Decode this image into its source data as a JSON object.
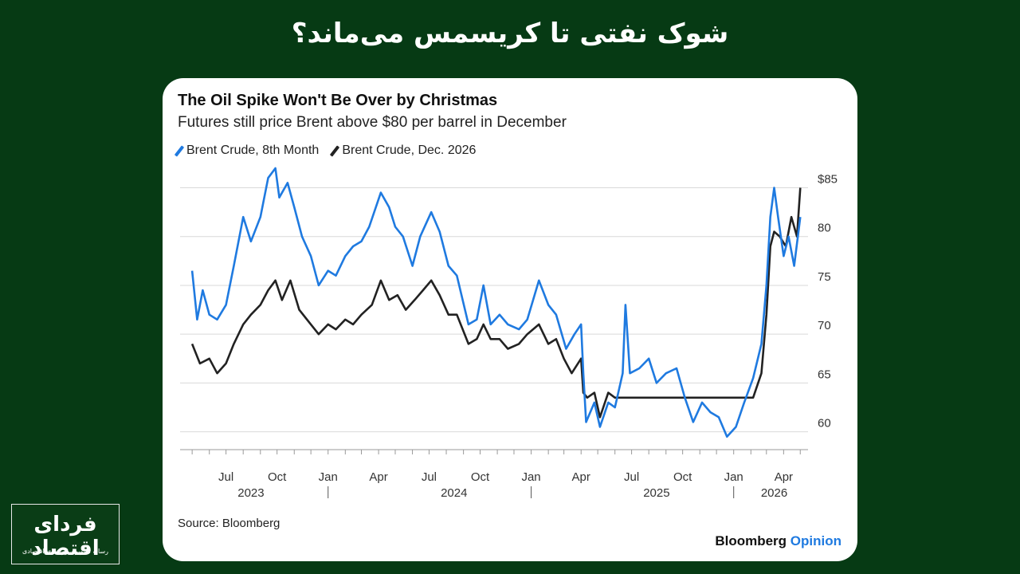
{
  "headline": "شوک نفتی تا کریسمس می‌ماند؟",
  "logo": {
    "main": "فردای اقتصاد",
    "sub": "رسانه تصویری روندهای اقتصادی"
  },
  "brand": {
    "name": "Bloomberg",
    "opinion": "Opinion"
  },
  "source": "Source: Bloomberg",
  "colors": {
    "background": "#063a14",
    "blue": "#1f7ae0",
    "black": "#222222",
    "grid": "#d9d9d9"
  },
  "chart_data": {
    "type": "line",
    "title": "The Oil Spike Won't Be Over by Christmas",
    "subtitle": "Futures still price Brent above $80 per barrel in December",
    "xlabel": "",
    "ylabel": "",
    "ylim": [
      58.5,
      87
    ],
    "grid": "horizontal",
    "legend_placement": "top-left",
    "y_ticks": [
      {
        "value": 85,
        "label": "$85"
      },
      {
        "value": 80,
        "label": "80"
      },
      {
        "value": 75,
        "label": "75"
      },
      {
        "value": 70,
        "label": "70"
      },
      {
        "value": 65,
        "label": "65"
      },
      {
        "value": 60,
        "label": "60"
      }
    ],
    "x_ticks": [
      "Jul",
      "Oct",
      "Jan",
      "Apr",
      "Jul",
      "Oct",
      "Jan",
      "Apr",
      "Jul",
      "Oct",
      "Jan",
      "Apr"
    ],
    "x_tick_months": [
      "2023-07",
      "2023-10",
      "2024-01",
      "2024-04",
      "2024-07",
      "2024-10",
      "2025-01",
      "2025-04",
      "2025-07",
      "2025-10",
      "2026-01",
      "2026-04"
    ],
    "year_labels": [
      {
        "year": "2023",
        "month": "2023-08"
      },
      {
        "year": "2024",
        "month": "2024-08"
      },
      {
        "year": "2025",
        "month": "2025-08"
      },
      {
        "year": "2026",
        "month": "2026-03"
      }
    ],
    "year_separators": [
      "2024-01",
      "2025-01",
      "2026-01"
    ],
    "series": [
      {
        "name": "Brent Crude, 8th Month",
        "color": "#1f7ae0",
        "points": [
          [
            "2023-05-01",
            76.5
          ],
          [
            "2023-05-10",
            71.5
          ],
          [
            "2023-05-20",
            74.5
          ],
          [
            "2023-06-01",
            72
          ],
          [
            "2023-06-15",
            71.5
          ],
          [
            "2023-07-01",
            73
          ],
          [
            "2023-07-15",
            77
          ],
          [
            "2023-08-01",
            82
          ],
          [
            "2023-08-15",
            79.5
          ],
          [
            "2023-09-01",
            82
          ],
          [
            "2023-09-15",
            86
          ],
          [
            "2023-09-28",
            87
          ],
          [
            "2023-10-05",
            84
          ],
          [
            "2023-10-20",
            85.5
          ],
          [
            "2023-11-01",
            83
          ],
          [
            "2023-11-15",
            80
          ],
          [
            "2023-12-01",
            78
          ],
          [
            "2023-12-15",
            75
          ],
          [
            "2024-01-01",
            76.5
          ],
          [
            "2024-01-15",
            76
          ],
          [
            "2024-02-01",
            78
          ],
          [
            "2024-02-15",
            79
          ],
          [
            "2024-03-01",
            79.5
          ],
          [
            "2024-03-15",
            81
          ],
          [
            "2024-04-05",
            84.5
          ],
          [
            "2024-04-20",
            83
          ],
          [
            "2024-05-01",
            81
          ],
          [
            "2024-05-15",
            80
          ],
          [
            "2024-06-01",
            77
          ],
          [
            "2024-06-15",
            80
          ],
          [
            "2024-07-05",
            82.5
          ],
          [
            "2024-07-20",
            80.5
          ],
          [
            "2024-08-05",
            77
          ],
          [
            "2024-08-20",
            76
          ],
          [
            "2024-09-10",
            71
          ],
          [
            "2024-09-25",
            71.5
          ],
          [
            "2024-10-07",
            75
          ],
          [
            "2024-10-20",
            71
          ],
          [
            "2024-11-05",
            72
          ],
          [
            "2024-11-20",
            71
          ],
          [
            "2024-12-10",
            70.5
          ],
          [
            "2024-12-25",
            71.5
          ],
          [
            "2025-01-15",
            75.5
          ],
          [
            "2025-02-01",
            73
          ],
          [
            "2025-02-15",
            72
          ],
          [
            "2025-03-05",
            68.5
          ],
          [
            "2025-03-20",
            70
          ],
          [
            "2025-04-01",
            71
          ],
          [
            "2025-04-05",
            66
          ],
          [
            "2025-04-10",
            61
          ],
          [
            "2025-04-25",
            63
          ],
          [
            "2025-05-05",
            60.5
          ],
          [
            "2025-05-20",
            63
          ],
          [
            "2025-06-01",
            62.5
          ],
          [
            "2025-06-15",
            66
          ],
          [
            "2025-06-20",
            73
          ],
          [
            "2025-06-28",
            66
          ],
          [
            "2025-07-15",
            66.5
          ],
          [
            "2025-08-01",
            67.5
          ],
          [
            "2025-08-15",
            65
          ],
          [
            "2025-09-01",
            66
          ],
          [
            "2025-09-20",
            66.5
          ],
          [
            "2025-10-05",
            63.5
          ],
          [
            "2025-10-20",
            61
          ],
          [
            "2025-11-05",
            63
          ],
          [
            "2025-11-20",
            62
          ],
          [
            "2025-12-05",
            61.5
          ],
          [
            "2025-12-20",
            59.5
          ],
          [
            "2026-01-05",
            60.5
          ],
          [
            "2026-01-20",
            63
          ],
          [
            "2026-02-05",
            65.5
          ],
          [
            "2026-02-20",
            69
          ],
          [
            "2026-03-01",
            75
          ],
          [
            "2026-03-08",
            82
          ],
          [
            "2026-03-15",
            85
          ],
          [
            "2026-03-22",
            82
          ],
          [
            "2026-04-01",
            78
          ],
          [
            "2026-04-10",
            80
          ],
          [
            "2026-04-20",
            77
          ],
          [
            "2026-05-01",
            82
          ]
        ]
      },
      {
        "name": "Brent Crude, Dec. 2026",
        "color": "#222222",
        "points": [
          [
            "2023-05-01",
            69
          ],
          [
            "2023-05-15",
            67
          ],
          [
            "2023-06-01",
            67.5
          ],
          [
            "2023-06-15",
            66
          ],
          [
            "2023-07-01",
            67
          ],
          [
            "2023-07-15",
            69
          ],
          [
            "2023-08-01",
            71
          ],
          [
            "2023-08-15",
            72
          ],
          [
            "2023-09-01",
            73
          ],
          [
            "2023-09-15",
            74.5
          ],
          [
            "2023-09-28",
            75.5
          ],
          [
            "2023-10-10",
            73.5
          ],
          [
            "2023-10-25",
            75.5
          ],
          [
            "2023-11-10",
            72.5
          ],
          [
            "2023-12-01",
            71
          ],
          [
            "2023-12-15",
            70
          ],
          [
            "2024-01-01",
            71
          ],
          [
            "2024-01-15",
            70.5
          ],
          [
            "2024-02-01",
            71.5
          ],
          [
            "2024-02-15",
            71
          ],
          [
            "2024-03-01",
            72
          ],
          [
            "2024-03-20",
            73
          ],
          [
            "2024-04-05",
            75.5
          ],
          [
            "2024-04-20",
            73.5
          ],
          [
            "2024-05-05",
            74
          ],
          [
            "2024-05-20",
            72.5
          ],
          [
            "2024-06-05",
            73.5
          ],
          [
            "2024-06-20",
            74.5
          ],
          [
            "2024-07-05",
            75.5
          ],
          [
            "2024-07-20",
            74
          ],
          [
            "2024-08-05",
            72
          ],
          [
            "2024-08-20",
            72
          ],
          [
            "2024-09-10",
            69
          ],
          [
            "2024-09-25",
            69.5
          ],
          [
            "2024-10-07",
            71
          ],
          [
            "2024-10-20",
            69.5
          ],
          [
            "2024-11-05",
            69.5
          ],
          [
            "2024-11-20",
            68.5
          ],
          [
            "2024-12-10",
            69
          ],
          [
            "2024-12-25",
            70
          ],
          [
            "2025-01-15",
            71
          ],
          [
            "2025-02-01",
            69
          ],
          [
            "2025-02-15",
            69.5
          ],
          [
            "2025-03-01",
            67.5
          ],
          [
            "2025-03-15",
            66
          ],
          [
            "2025-04-01",
            67.5
          ],
          [
            "2025-04-05",
            64
          ],
          [
            "2025-04-12",
            63.5
          ],
          [
            "2025-04-25",
            64
          ],
          [
            "2025-05-05",
            61.5
          ],
          [
            "2025-05-20",
            64
          ],
          [
            "2025-06-01",
            63.5
          ],
          [
            "2026-02-05",
            63.5
          ],
          [
            "2026-02-20",
            66
          ],
          [
            "2026-03-01",
            72
          ],
          [
            "2026-03-08",
            79
          ],
          [
            "2026-03-15",
            80.5
          ],
          [
            "2026-03-25",
            80
          ],
          [
            "2026-04-05",
            79
          ],
          [
            "2026-04-15",
            82
          ],
          [
            "2026-04-25",
            80
          ],
          [
            "2026-05-01",
            85
          ]
        ]
      }
    ]
  }
}
